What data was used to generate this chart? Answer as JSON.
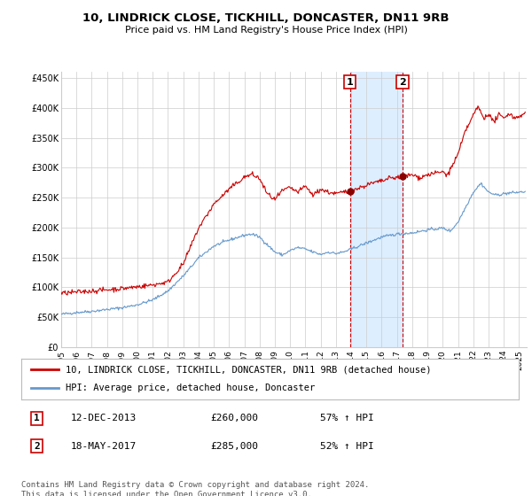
{
  "title": "10, LINDRICK CLOSE, TICKHILL, DONCASTER, DN11 9RB",
  "subtitle": "Price paid vs. HM Land Registry's House Price Index (HPI)",
  "ylim": [
    0,
    460000
  ],
  "yticks": [
    0,
    50000,
    100000,
    150000,
    200000,
    250000,
    300000,
    350000,
    400000,
    450000
  ],
  "ytick_labels": [
    "£0",
    "£50K",
    "£100K",
    "£150K",
    "£200K",
    "£250K",
    "£300K",
    "£350K",
    "£400K",
    "£450K"
  ],
  "xlim_start": 1995.0,
  "xlim_end": 2025.5,
  "xticks": [
    1995,
    1996,
    1997,
    1998,
    1999,
    2000,
    2001,
    2002,
    2003,
    2004,
    2005,
    2006,
    2007,
    2008,
    2009,
    2010,
    2011,
    2012,
    2013,
    2014,
    2015,
    2016,
    2017,
    2018,
    2019,
    2020,
    2021,
    2022,
    2023,
    2024,
    2025
  ],
  "legend_line1": "10, LINDRICK CLOSE, TICKHILL, DONCASTER, DN11 9RB (detached house)",
  "legend_line2": "HPI: Average price, detached house, Doncaster",
  "sale1_date": "12-DEC-2013",
  "sale1_price": "£260,000",
  "sale1_hpi": "57% ↑ HPI",
  "sale1_year": 2013.92,
  "sale1_price_val": 260000,
  "sale2_date": "18-MAY-2017",
  "sale2_price": "£285,000",
  "sale2_hpi": "52% ↑ HPI",
  "sale2_year": 2017.37,
  "sale2_price_val": 285000,
  "red_color": "#cc0000",
  "blue_color": "#6699cc",
  "shade_color": "#ddeeff",
  "footer_text": "Contains HM Land Registry data © Crown copyright and database right 2024.\nThis data is licensed under the Open Government Licence v3.0.",
  "background_color": "#ffffff",
  "grid_color": "#cccccc",
  "title_fontsize": 9.5,
  "subtitle_fontsize": 8,
  "tick_fontsize": 7,
  "legend_fontsize": 7.5,
  "table_fontsize": 8
}
